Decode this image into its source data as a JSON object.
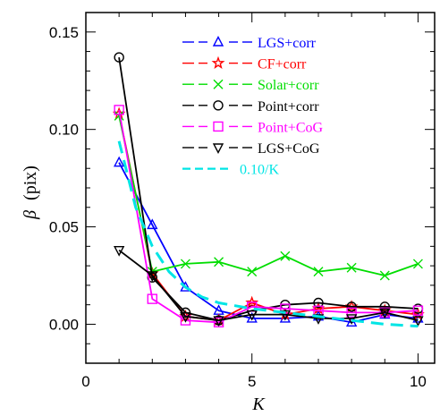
{
  "chart_data": {
    "type": "line",
    "title": "",
    "xlabel": "K",
    "ylabel_symbol": "β",
    "ylabel_unit": "(pix)",
    "xlim": [
      0,
      10.5
    ],
    "ylim": [
      -0.02,
      0.16
    ],
    "xticks": [
      0,
      5,
      10
    ],
    "yticks": [
      0.0,
      0.05,
      0.1,
      0.15
    ],
    "ytick_labels": [
      "0.00",
      "0.05",
      "0.10",
      "0.15"
    ],
    "grid": false,
    "legend_position": "top-right",
    "series": [
      {
        "name": "LGS+corr",
        "color": "#0000ff",
        "marker": "triangle-up",
        "x": [
          1,
          2,
          3,
          4,
          5,
          6,
          7,
          8,
          9,
          10
        ],
        "y": [
          0.083,
          0.051,
          0.019,
          0.007,
          0.003,
          0.003,
          0.004,
          0.001,
          0.005,
          0.003
        ]
      },
      {
        "name": "CF+corr",
        "color": "#ff0000",
        "marker": "star",
        "x": [
          1,
          2,
          3,
          4,
          5,
          6,
          7,
          8,
          9,
          10
        ],
        "y": [
          0.108,
          0.026,
          0.004,
          0.002,
          0.011,
          0.005,
          0.008,
          0.009,
          0.007,
          0.005
        ]
      },
      {
        "name": "Solar+corr",
        "color": "#00dd00",
        "marker": "x",
        "x": [
          1,
          2,
          3,
          4,
          5,
          6,
          7,
          8,
          9,
          10
        ],
        "y": [
          0.107,
          0.027,
          0.031,
          0.032,
          0.027,
          0.035,
          0.027,
          0.029,
          0.025,
          0.031
        ]
      },
      {
        "name": "Point+corr",
        "color": "#000000",
        "marker": "circle",
        "x": [
          1,
          2,
          3,
          4,
          5,
          6,
          7,
          8,
          9,
          10
        ],
        "y": [
          0.137,
          0.024,
          0.006,
          0.002,
          0.007,
          0.01,
          0.011,
          0.009,
          0.009,
          0.008
        ]
      },
      {
        "name": "Point+CoG",
        "color": "#ff00ff",
        "marker": "square",
        "x": [
          1,
          2,
          3,
          4,
          5,
          6,
          7,
          8,
          9,
          10
        ],
        "y": [
          0.11,
          0.013,
          0.002,
          0.001,
          0.009,
          0.008,
          0.007,
          0.006,
          0.006,
          0.007
        ]
      },
      {
        "name": "LGS+CoG",
        "color": "#000000",
        "marker": "triangle-down",
        "x": [
          1,
          2,
          3,
          4,
          5,
          6,
          7,
          8,
          9,
          10
        ],
        "y": [
          0.038,
          0.025,
          0.004,
          0.002,
          0.005,
          0.005,
          0.003,
          0.003,
          0.006,
          0.002
        ]
      },
      {
        "name": "0.10/K",
        "color": "#00e5e5",
        "marker": "none",
        "dashed": true,
        "curve": "fit",
        "x": [
          1,
          1.5,
          2,
          2.5,
          3,
          3.5,
          4,
          5,
          6,
          7,
          8,
          9,
          10
        ],
        "y": [
          0.094,
          0.06,
          0.04,
          0.027,
          0.019,
          0.014,
          0.011,
          0.008,
          0.006,
          0.004,
          0.002,
          0.0,
          -0.001
        ]
      }
    ]
  }
}
